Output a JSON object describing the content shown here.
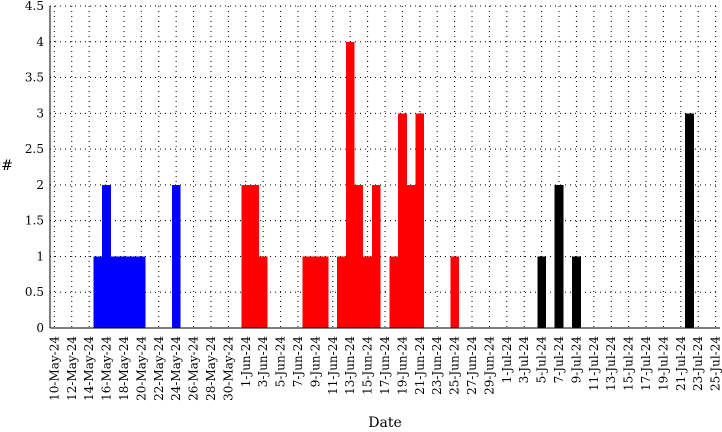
{
  "chart_data": {
    "type": "bar",
    "title": "",
    "xlabel": "Date",
    "ylabel": "#",
    "ylim": [
      0,
      4.5
    ],
    "yticks": [
      0,
      0.5,
      1,
      1.5,
      2,
      2.5,
      3,
      3.5,
      4,
      4.5
    ],
    "ytick_labels": [
      "0",
      "0.5",
      "1",
      "1.5",
      "2",
      "2.5",
      "3",
      "3.5",
      "4",
      "4.5"
    ],
    "x_start": "2024-05-10",
    "x_end": "2024-07-26",
    "xtick_labels": [
      "10-May-24",
      "12-May-24",
      "14-May-24",
      "16-May-24",
      "18-May-24",
      "20-May-24",
      "22-May-24",
      "24-May-24",
      "26-May-24",
      "28-May-24",
      "30-May-24",
      "1-Jun-24",
      "3-Jun-24",
      "5-Jun-24",
      "7-Jun-24",
      "9-Jun-24",
      "11-Jun-24",
      "13-Jun-24",
      "15-Jun-24",
      "17-Jun-24",
      "19-Jun-24",
      "21-Jun-24",
      "23-Jun-24",
      "25-Jun-24",
      "27-Jun-24",
      "29-Jun-24",
      "1-Jul-24",
      "3-Jul-24",
      "5-Jul-24",
      "7-Jul-24",
      "9-Jul-24",
      "11-Jul-24",
      "13-Jul-24",
      "15-Jul-24",
      "17-Jul-24",
      "19-Jul-24",
      "21-Jul-24",
      "23-Jul-24",
      "25-Jul-24"
    ],
    "grid": true,
    "series": [
      {
        "color": "#0000ff",
        "points": [
          {
            "date": "2024-05-15",
            "value": 1
          },
          {
            "date": "2024-05-16",
            "value": 2
          },
          {
            "date": "2024-05-17",
            "value": 1
          },
          {
            "date": "2024-05-18",
            "value": 1
          },
          {
            "date": "2024-05-19",
            "value": 1
          },
          {
            "date": "2024-05-20",
            "value": 1
          },
          {
            "date": "2024-05-24",
            "value": 2
          }
        ]
      },
      {
        "color": "#ff0000",
        "points": [
          {
            "date": "2024-06-01",
            "value": 2
          },
          {
            "date": "2024-06-02",
            "value": 2
          },
          {
            "date": "2024-06-03",
            "value": 1
          },
          {
            "date": "2024-06-08",
            "value": 1
          },
          {
            "date": "2024-06-09",
            "value": 1
          },
          {
            "date": "2024-06-10",
            "value": 1
          },
          {
            "date": "2024-06-12",
            "value": 1
          },
          {
            "date": "2024-06-13",
            "value": 4
          },
          {
            "date": "2024-06-14",
            "value": 2
          },
          {
            "date": "2024-06-15",
            "value": 1
          },
          {
            "date": "2024-06-16",
            "value": 2
          },
          {
            "date": "2024-06-18",
            "value": 1
          },
          {
            "date": "2024-06-19",
            "value": 3
          },
          {
            "date": "2024-06-20",
            "value": 2
          },
          {
            "date": "2024-06-21",
            "value": 3
          },
          {
            "date": "2024-06-25",
            "value": 1
          }
        ]
      },
      {
        "color": "#000000",
        "points": [
          {
            "date": "2024-07-05",
            "value": 1
          },
          {
            "date": "2024-07-07",
            "value": 2
          },
          {
            "date": "2024-07-09",
            "value": 1
          },
          {
            "date": "2024-07-22",
            "value": 3
          }
        ]
      }
    ]
  }
}
